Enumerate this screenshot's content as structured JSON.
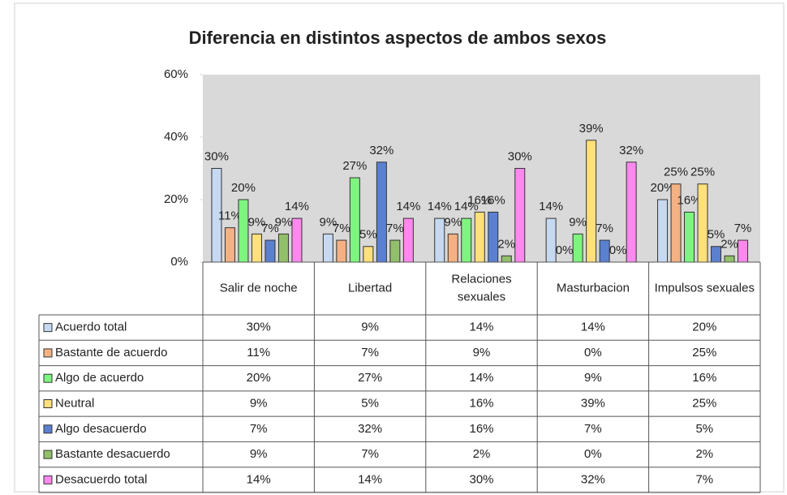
{
  "chart_data": {
    "type": "bar",
    "title": "Diferencia en distintos aspectos de ambos sexos",
    "categories": [
      "Salir de noche",
      "Libertad",
      "Relaciones sexuales",
      "Masturbacion",
      "Impulsos sexuales"
    ],
    "ylim": [
      0,
      60
    ],
    "yticks": [
      {
        "value": 0,
        "label": "0%"
      },
      {
        "value": 20,
        "label": "20%"
      },
      {
        "value": 40,
        "label": "40%"
      },
      {
        "value": 60,
        "label": "60%"
      }
    ],
    "series": [
      {
        "name": "Acuerdo total",
        "color": "#c6d9f1",
        "values": [
          30,
          9,
          14,
          14,
          20
        ],
        "value_labels": [
          "30%",
          "9%",
          "14%",
          "14%",
          "20%"
        ]
      },
      {
        "name": "Bastante de acuerdo",
        "color": "#f4b183",
        "values": [
          11,
          7,
          9,
          0,
          25
        ],
        "value_labels": [
          "11%",
          "7%",
          "9%",
          "0%",
          "25%"
        ]
      },
      {
        "name": "Algo de acuerdo",
        "color": "#7ef57e",
        "values": [
          20,
          27,
          14,
          9,
          16
        ],
        "value_labels": [
          "20%",
          "27%",
          "14%",
          "9%",
          "16%"
        ]
      },
      {
        "name": "Neutral",
        "color": "#ffe07a",
        "values": [
          9,
          5,
          16,
          39,
          25
        ],
        "value_labels": [
          "9%",
          "5%",
          "16%",
          "39%",
          "25%"
        ]
      },
      {
        "name": "Algo desacuerdo",
        "color": "#5b80d0",
        "values": [
          7,
          32,
          16,
          7,
          5
        ],
        "value_labels": [
          "7%",
          "32%",
          "16%",
          "7%",
          "5%"
        ]
      },
      {
        "name": "Bastante desacuerdo",
        "color": "#92c06a",
        "values": [
          9,
          7,
          2,
          0,
          2
        ],
        "value_labels": [
          "9%",
          "7%",
          "2%",
          "0%",
          "2%"
        ]
      },
      {
        "name": "Desacuerdo total",
        "color": "#ff88ee",
        "values": [
          14,
          14,
          30,
          32,
          7
        ],
        "value_labels": [
          "14%",
          "14%",
          "30%",
          "32%",
          "7%"
        ]
      }
    ]
  }
}
